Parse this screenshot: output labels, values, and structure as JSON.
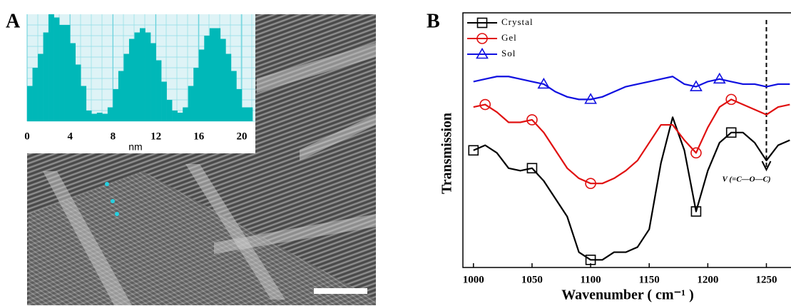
{
  "panel_labels": [
    "A",
    "B"
  ],
  "chart_data": [
    {
      "type": "histogram",
      "xlabel": "nm",
      "color": "#00b8b8",
      "bins": [
        0,
        0.5,
        1,
        1.5,
        2,
        2.5,
        3,
        3.5,
        4,
        4.5,
        5,
        5.5,
        6,
        6.5,
        7,
        7.5,
        8,
        8.5,
        9,
        9.5,
        10,
        10.5,
        11,
        11.5,
        12,
        12.5,
        13,
        13.5,
        14,
        14.5,
        15,
        15.5,
        16,
        16.5,
        17,
        17.5,
        18,
        18.5,
        19,
        19.5,
        20,
        20.5,
        21
      ],
      "values": [
        33,
        50,
        63,
        83,
        100,
        97,
        90,
        90,
        73,
        53,
        33,
        10,
        7,
        8,
        7,
        13,
        30,
        47,
        63,
        77,
        83,
        87,
        83,
        73,
        57,
        37,
        20,
        10,
        8,
        13,
        33,
        50,
        67,
        80,
        87,
        87,
        77,
        63,
        47,
        30,
        13,
        13
      ],
      "xlim": [
        0,
        21
      ],
      "ylim": [
        0,
        100
      ],
      "xticks": [
        0,
        4,
        8,
        12,
        16,
        20
      ],
      "grid": true
    },
    {
      "type": "line",
      "xlabel": "Wavenumber ( cm⁻¹ )",
      "ylabel": "Transmission",
      "x": [
        1000,
        1010,
        1020,
        1030,
        1040,
        1050,
        1060,
        1070,
        1080,
        1090,
        1100,
        1110,
        1120,
        1130,
        1140,
        1150,
        1160,
        1170,
        1180,
        1190,
        1200,
        1210,
        1220,
        1230,
        1240,
        1250,
        1260,
        1270
      ],
      "series": [
        {
          "name": "Crystal",
          "color": "#000000",
          "marker": "square",
          "values": [
            46,
            48,
            45,
            39,
            38,
            39,
            34,
            27,
            20,
            6,
            3,
            3,
            6,
            6,
            8,
            15,
            41,
            59,
            46,
            22,
            38,
            49,
            53,
            53,
            49,
            42,
            48,
            50
          ]
        },
        {
          "name": "Gel",
          "color": "#e01010",
          "marker": "circle",
          "values": [
            63,
            64,
            61,
            57,
            57,
            58,
            53,
            46,
            39,
            35,
            33,
            33,
            35,
            38,
            42,
            49,
            56,
            56,
            50,
            45,
            55,
            63,
            66,
            64,
            62,
            60,
            63,
            64
          ]
        },
        {
          "name": "Sol",
          "color": "#1010e0",
          "marker": "triangle",
          "values": [
            73,
            74,
            75,
            75,
            74,
            73,
            72,
            69,
            67,
            66,
            66,
            67,
            69,
            71,
            72,
            73,
            74,
            75,
            72,
            71,
            73,
            74,
            73,
            72,
            72,
            71,
            72,
            72
          ]
        }
      ],
      "annotation": "V (=C—O—C)",
      "xlim": [
        991,
        1271
      ],
      "ylim": [
        0,
        100
      ],
      "xticks": [
        1000,
        1050,
        1100,
        1150,
        1200,
        1250
      ],
      "legend": "upper left"
    }
  ]
}
